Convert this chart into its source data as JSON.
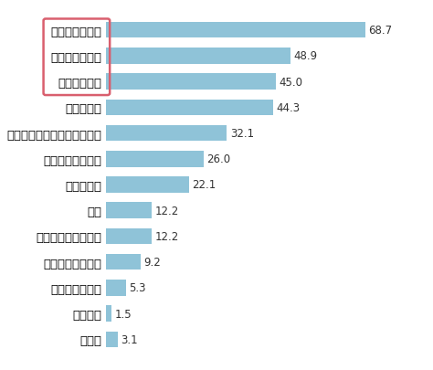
{
  "categories": [
    "パサつき・乾燥",
    "うねり・くせ毛",
    "枝毛や切れ毛",
    "傷みやすい",
    "ヘアカラーの色が抜けやすい",
    "ボリュームが多い",
    "ツヤがない",
    "白髪",
    "ボリュームが少ない",
    "ハリ・コシがない",
    "髪の毛が少ない",
    "特にない",
    "その他"
  ],
  "values": [
    68.7,
    48.9,
    45.0,
    44.3,
    32.1,
    26.0,
    22.1,
    12.2,
    12.2,
    9.2,
    5.3,
    1.5,
    3.1
  ],
  "bar_color_all": "#8fc3d8",
  "highlight_box_color": "#d95f6e",
  "bg_color": "#ffffff",
  "value_fontsize": 8.5,
  "label_fontsize": 9.5
}
